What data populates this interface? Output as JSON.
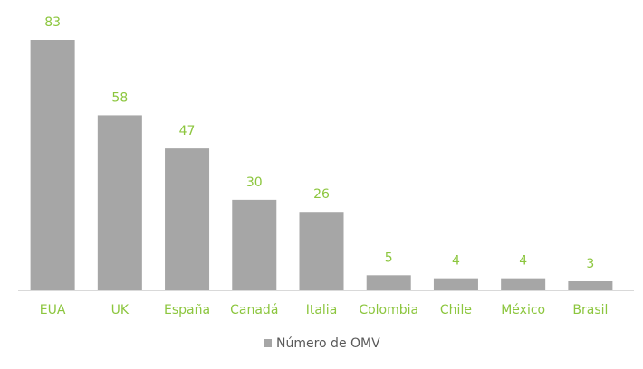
{
  "chart_data": {
    "type": "bar",
    "categories": [
      "EUA",
      "UK",
      "España",
      "Canadá",
      "Italia",
      "Colombia",
      "Chile",
      "México",
      "Brasil"
    ],
    "series": [
      {
        "name": "Número de OMV",
        "color": "#a6a6a6",
        "values": [
          83,
          58,
          47,
          30,
          26,
          5,
          4,
          4,
          3
        ]
      }
    ],
    "label_color": "#8cc63e",
    "legend": "bottom"
  }
}
